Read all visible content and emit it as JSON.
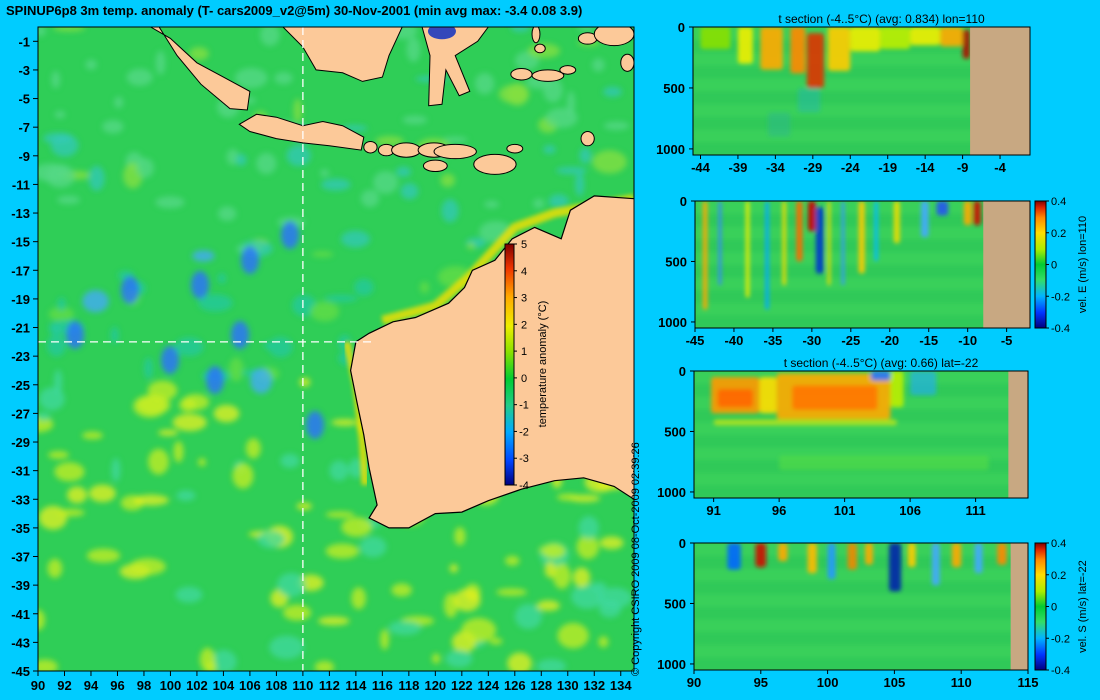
{
  "page": {
    "title": "SPINUP6p8 3m temp. anomaly (T- cars2009_v2@5m) 30-Nov-2001 (min avg max: -3.4 0.08 3.9)",
    "copyright": "© Copyright CSIRO 2009  08-Oct-2009 02:39:26"
  },
  "colors": {
    "background": "#00ccff",
    "ocean_base": "#2fce57",
    "land": "#fcc999",
    "section_land": "#c8a882",
    "guide_line": "#ffffff",
    "colormap": [
      "#00007f",
      "#0033ff",
      "#00b4ff",
      "#33dd66",
      "#00cc33",
      "#aaee00",
      "#ffdd00",
      "#ff8800",
      "#dd2200",
      "#7f0000"
    ]
  },
  "chart_data": [
    {
      "type": "heatmap",
      "name": "map",
      "xlim": [
        90,
        135
      ],
      "ylim": [
        -45,
        0
      ],
      "xticks": [
        90,
        92,
        94,
        96,
        98,
        100,
        102,
        104,
        106,
        108,
        110,
        112,
        114,
        116,
        118,
        120,
        122,
        124,
        126,
        128,
        130,
        132,
        134
      ],
      "yticks": [
        -1,
        -3,
        -5,
        -7,
        -9,
        -11,
        -13,
        -15,
        -17,
        -19,
        -21,
        -23,
        -25,
        -27,
        -29,
        -31,
        -33,
        -35,
        -37,
        -39,
        -41,
        -43,
        -45
      ],
      "guide_lon": 110,
      "guide_lat": -22,
      "colorbar": {
        "label": "temperature anomaly (°C)",
        "range": [
          -4,
          5
        ],
        "ticks": [
          5,
          4,
          3,
          2,
          1,
          0,
          -1,
          -2,
          -3,
          -4
        ]
      }
    },
    {
      "type": "heatmap",
      "name": "t-section-lon110",
      "title": "t section (-4..5°C) (avg: 0.834) lon=110",
      "xlim": [
        -45,
        0
      ],
      "ylim": [
        1050,
        0
      ],
      "xticks": [
        -44,
        -39,
        -34,
        -29,
        -24,
        -19,
        -14,
        -9,
        -4
      ],
      "yticks": [
        0,
        500,
        1000
      ]
    },
    {
      "type": "heatmap",
      "name": "velE-section-lon110",
      "title": "",
      "xlim": [
        -45,
        -2
      ],
      "ylim": [
        1050,
        0
      ],
      "xticks": [
        -45,
        -40,
        -35,
        -30,
        -25,
        -20,
        -15,
        -10,
        -5
      ],
      "yticks": [
        0,
        500,
        1000
      ],
      "colorbar": {
        "label": "vel. E (m/s) lon=110",
        "range": [
          -0.4,
          0.4
        ],
        "ticks": [
          0.4,
          0.2,
          0,
          -0.2,
          -0.4
        ]
      }
    },
    {
      "type": "heatmap",
      "name": "t-section-lat-22",
      "title": "t section (-4..5°C) (avg: 0.66) lat=-22",
      "xlim": [
        89.5,
        115
      ],
      "ylim": [
        1050,
        0
      ],
      "xticks": [
        91,
        96,
        101,
        106,
        111
      ],
      "yticks": [
        0,
        500,
        1000
      ]
    },
    {
      "type": "heatmap",
      "name": "velS-section-lat-22",
      "title": "",
      "xlim": [
        90,
        115
      ],
      "ylim": [
        1050,
        0
      ],
      "xticks": [
        90,
        95,
        100,
        105,
        110,
        115
      ],
      "yticks": [
        0,
        500,
        1000
      ],
      "colorbar": {
        "label": "vel. S (m/s) lat=-22",
        "range": [
          -0.4,
          0.4
        ],
        "ticks": [
          0.4,
          0.2,
          0,
          -0.2,
          -0.4
        ]
      }
    }
  ]
}
